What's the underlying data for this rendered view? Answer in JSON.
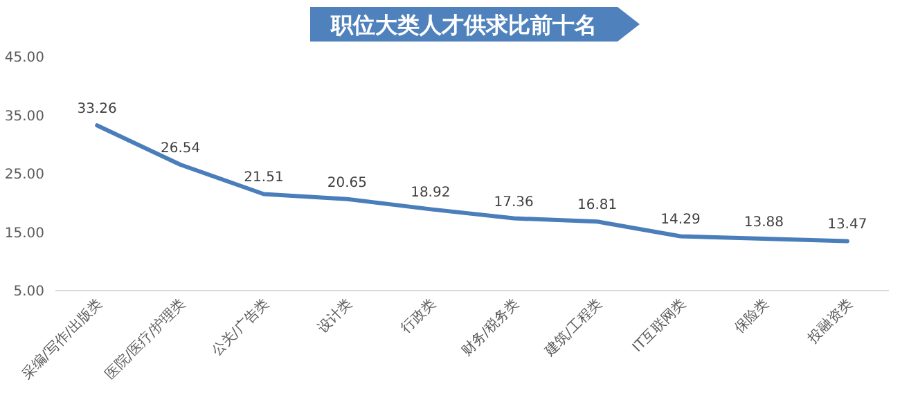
{
  "chart_data": {
    "type": "line",
    "title": "职位大类人才供求比前十名",
    "categories": [
      "采编/写作/出版类",
      "医院/医疗/护理类",
      "公关/广告类",
      "设计类",
      "行政类",
      "财务/税务类",
      "建筑/工程类",
      "IT互联网类",
      "保险类",
      "投融资类"
    ],
    "series": [
      {
        "color": "#4a7ebb",
        "values": [
          33.26,
          26.54,
          21.51,
          20.65,
          18.92,
          17.36,
          16.81,
          14.29,
          13.88,
          13.47
        ]
      }
    ],
    "ylim": [
      5,
      45
    ],
    "yticks": [
      {
        "value": 5,
        "label": "5.00"
      },
      {
        "value": 15,
        "label": "15.00"
      },
      {
        "value": 25,
        "label": "25.00"
      },
      {
        "value": 35,
        "label": "35.00"
      },
      {
        "value": 45,
        "label": "45.00"
      }
    ],
    "data_labels": true,
    "grid": false,
    "marker": "none",
    "line_style": "solid"
  }
}
